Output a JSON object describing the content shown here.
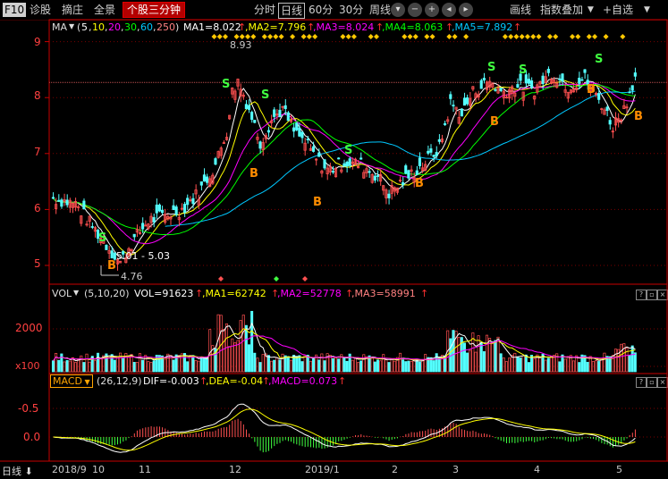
{
  "topbar": {
    "f10": "F10",
    "zhengu": "诊股",
    "zezhuang": "摘庄",
    "quanjing": "全景",
    "indicator": "个股三分钟",
    "timeframes": [
      "分时",
      "日线",
      "60分",
      "30分",
      "周线"
    ],
    "active_timeframe": "日线",
    "huaxian": "画线",
    "overlay": "指数叠加",
    "self_select": "+自选"
  },
  "ma_legend": {
    "name": "MA",
    "params_open": "(",
    "params": [
      "5",
      "10",
      "20",
      "30",
      "60",
      "250"
    ],
    "params_close": ")",
    "ma1": "MA1=8.022",
    "ma2": ",MA2=7.796",
    "ma3": ",MA3=8.024",
    "ma4": ",MA4=8.063",
    "ma5": ",MA5=7.892"
  },
  "vol_legend": {
    "name": "VOL",
    "params": "(5,10,20)",
    "vol": "VOL=91623",
    "ma1": ",MA1=62742",
    "ma2": ",MA2=52778",
    "ma3": ",MA3=58991"
  },
  "macd_legend": {
    "name": "MACD",
    "params": "(26,12,9)",
    "dif": "DIF=-0.003",
    "dea": ",DEA=-0.04",
    "macd": ",MACD=0.073"
  },
  "price_axis": [
    "9",
    "8",
    "7",
    "6",
    "5"
  ],
  "vol_axis": [
    "2000",
    "x100"
  ],
  "macd_axis": [
    "0.0",
    "-0.5"
  ],
  "annotations": {
    "high": "8.93",
    "low": "4.76",
    "range": "5.01 - 5.03"
  },
  "bottom_bar": {
    "period": "日线",
    "dates": [
      "2018/9",
      "10",
      "11",
      "12",
      "2019/1",
      "2",
      "3",
      "4",
      "5"
    ]
  },
  "signals": {
    "buy": "B",
    "sell": "S"
  },
  "colors": {
    "up": "#ff5050",
    "down": "#54ffff",
    "ma5": "#ffffff",
    "ma10": "#ffff00",
    "ma20": "#ff00ff",
    "ma30": "#00ff00",
    "ma60": "#00c8ff",
    "axis": "#c80000",
    "grid": "#7a0000"
  }
}
